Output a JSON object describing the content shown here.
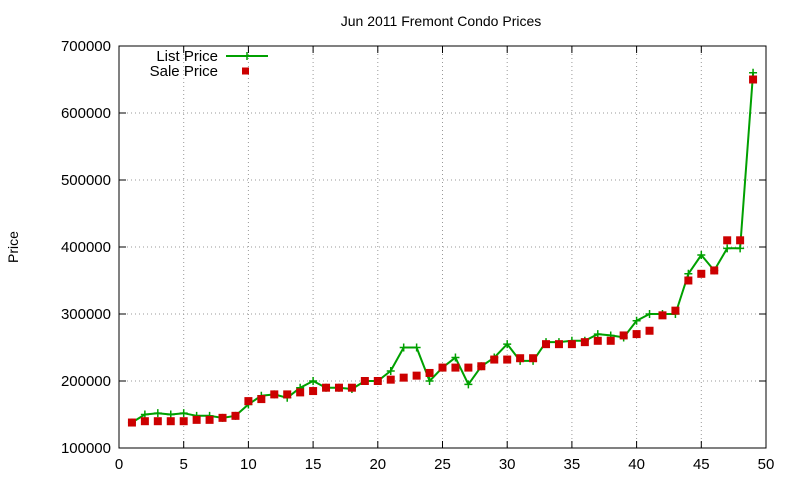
{
  "chart_data": {
    "type": "line",
    "title": "Jun 2011 Fremont Condo Prices",
    "xlabel": "",
    "ylabel": "Price",
    "xlim": [
      0,
      50
    ],
    "ylim": [
      100000,
      700000
    ],
    "x_ticks": [
      "0",
      "5",
      "10",
      "15",
      "20",
      "25",
      "30",
      "35",
      "40",
      "45",
      "50"
    ],
    "y_ticks": [
      "100000",
      "200000",
      "300000",
      "400000",
      "500000",
      "600000",
      "700000"
    ],
    "grid": true,
    "legend_position": "top-left",
    "x": [
      1,
      2,
      3,
      4,
      5,
      6,
      7,
      8,
      9,
      10,
      11,
      12,
      13,
      14,
      15,
      16,
      17,
      18,
      19,
      20,
      21,
      22,
      23,
      24,
      25,
      26,
      27,
      28,
      29,
      30,
      31,
      32,
      33,
      34,
      35,
      36,
      37,
      38,
      39,
      40,
      41,
      42,
      43,
      44,
      45,
      46,
      47,
      48,
      49
    ],
    "series": [
      {
        "name": "List Price",
        "style": "line-with-plus-markers",
        "color": "#00a000",
        "values": [
          138000,
          150000,
          152000,
          150000,
          152000,
          148000,
          148000,
          145000,
          148000,
          165000,
          178000,
          180000,
          175000,
          190000,
          200000,
          190000,
          190000,
          188000,
          200000,
          200000,
          215000,
          250000,
          250000,
          200000,
          220000,
          235000,
          195000,
          222000,
          235000,
          255000,
          230000,
          230000,
          258000,
          258000,
          260000,
          260000,
          270000,
          268000,
          265000,
          290000,
          300000,
          300000,
          300000,
          360000,
          388000,
          365000,
          398000,
          398000,
          660000
        ]
      },
      {
        "name": "Sale Price",
        "style": "square-points",
        "color": "#cc0000",
        "values": [
          138000,
          140000,
          140000,
          140000,
          140000,
          142000,
          142000,
          145000,
          148000,
          170000,
          173000,
          180000,
          180000,
          183000,
          185000,
          190000,
          190000,
          190000,
          200000,
          200000,
          202000,
          205000,
          208000,
          212000,
          220000,
          220000,
          220000,
          222000,
          232000,
          232000,
          234000,
          234000,
          255000,
          255000,
          255000,
          258000,
          260000,
          260000,
          268000,
          270000,
          275000,
          298000,
          305000,
          350000,
          360000,
          365000,
          410000,
          410000,
          650000
        ]
      }
    ]
  }
}
